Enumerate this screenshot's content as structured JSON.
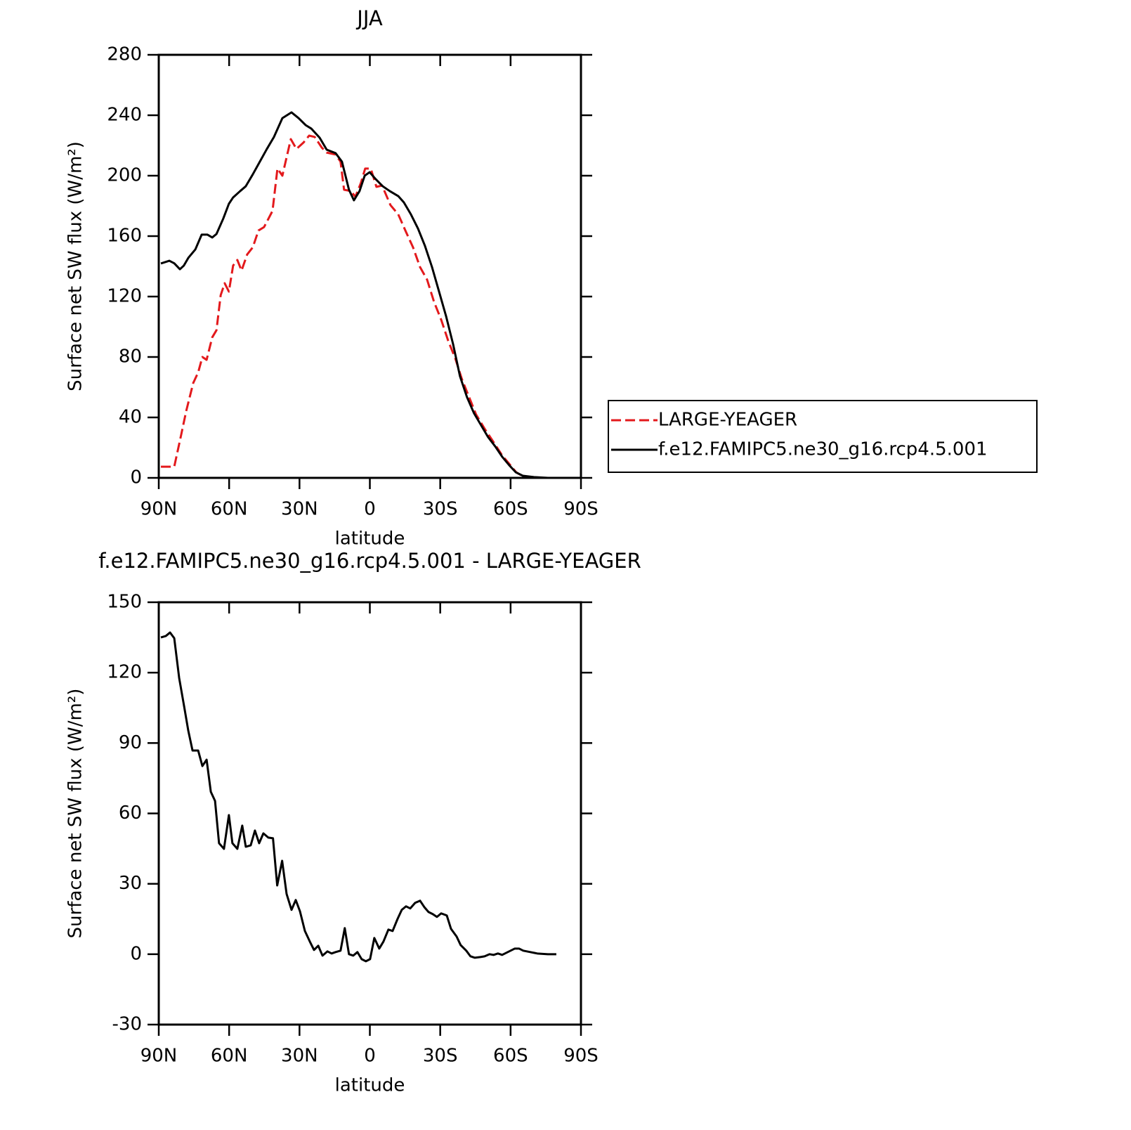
{
  "chart_data": [
    {
      "type": "line",
      "title": "JJA",
      "xlabel": "latitude",
      "ylabel": "Surface net SW flux (W/m²)",
      "xlim": [
        90,
        -90
      ],
      "xticks": [
        {
          "value": 90,
          "label": "90N"
        },
        {
          "value": 60,
          "label": "60N"
        },
        {
          "value": 30,
          "label": "30N"
        },
        0,
        {
          "value": -30,
          "label": "30S"
        },
        {
          "value": -60,
          "label": "60S"
        },
        {
          "value": -90,
          "label": "90S"
        }
      ],
      "ylim": [
        0,
        280
      ],
      "yticks": [
        0,
        40,
        80,
        120,
        160,
        200,
        240,
        280
      ],
      "legend": "right",
      "series": [
        {
          "name": "LARGE-YEAGER",
          "color": "#e3191c",
          "linestyle": "dashed",
          "x": [
            89.1,
            83.4,
            80.4,
            78.3,
            75.3,
            73.2,
            71.4,
            69.6,
            67.2,
            65.4,
            63.6,
            61.9,
            60.1,
            58.3,
            56.5,
            54.7,
            52.3,
            49.9,
            47.5,
            45.1,
            41.5,
            39.4,
            37.3,
            33.7,
            31.3,
            28.3,
            25.9,
            23.5,
            20.5,
            18.4,
            14.6,
            12.5,
            11,
            8,
            6.2,
            3.8,
            2,
            -0.4,
            -2.8,
            -5.2,
            -8.8,
            -12.1,
            -15.4,
            -18.4,
            -21.4,
            -24.4,
            -27.4,
            -30.4,
            -33.4,
            -36.4,
            -39.3,
            -42.3,
            -45.3,
            -48.9,
            -52.5,
            -56.4,
            -59.4,
            -62.4,
            -65.4,
            -69.9,
            -81.9,
            -88.5
          ],
          "values": [
            7.4,
            7.4,
            28.8,
            44.2,
            62.8,
            69.8,
            80,
            78.1,
            93,
            97.7,
            120.9,
            128.8,
            123.3,
            140.5,
            144.2,
            137.2,
            147.9,
            152.6,
            163.7,
            166,
            176.7,
            204.7,
            200,
            224.2,
            217.7,
            221.9,
            226.5,
            225.6,
            218.6,
            215.3,
            214,
            209.3,
            190.7,
            189.8,
            186,
            195.3,
            204.7,
            204.7,
            192.6,
            193.5,
            180.5,
            174.4,
            162.8,
            152.6,
            139.5,
            131.2,
            116.3,
            104.7,
            90.7,
            79.1,
            65.1,
            53.5,
            41.9,
            32.6,
            24.2,
            14.9,
            9.3,
            3.7,
            0.9,
            0,
            0,
            0
          ]
        },
        {
          "name": "f.e12.FAMIPC5.ne30_g16.rcp4.5.001",
          "color": "#000000",
          "linestyle": "solid",
          "x": [
            89.1,
            85.5,
            83.4,
            81,
            79.3,
            77.4,
            74.4,
            71.7,
            69.3,
            67.2,
            65.4,
            62.5,
            60.1,
            58.3,
            55.3,
            52.9,
            49.9,
            46.9,
            43.9,
            40.9,
            37.3,
            33.4,
            30.4,
            27.4,
            25,
            21.4,
            18.4,
            14.6,
            11.9,
            8.9,
            6.8,
            4.4,
            2.2,
            0.1,
            -2.5,
            -5.5,
            -8.5,
            -12.1,
            -14.5,
            -17.5,
            -20.5,
            -23.5,
            -26.5,
            -29.5,
            -32.5,
            -35.5,
            -38.4,
            -41.4,
            -44.4,
            -47.4,
            -50.4,
            -53.4,
            -56.4,
            -59.4,
            -62.2,
            -65.2,
            -69.9,
            -75.9,
            -81.9,
            -88.5
          ],
          "values": [
            141.9,
            143.7,
            142,
            138.1,
            140.5,
            145.6,
            151.2,
            161,
            161,
            159.1,
            161.4,
            171.6,
            181.4,
            185.6,
            189.8,
            193,
            200.9,
            209.3,
            217.7,
            225.6,
            238.1,
            241.9,
            238.1,
            233.5,
            231.2,
            225.1,
            217.2,
            214.9,
            209.3,
            190.7,
            183.7,
            189.8,
            200,
            202.3,
            197.7,
            193,
            189.8,
            186.5,
            182.3,
            174.4,
            165.1,
            153.5,
            139.5,
            123.3,
            107,
            88.4,
            67.4,
            53.5,
            42.8,
            34.9,
            27,
            20.9,
            14,
            8.4,
            3.7,
            1.4,
            0.5,
            0,
            0,
            0
          ]
        }
      ]
    },
    {
      "type": "line",
      "title": "f.e12.FAMIPC5.ne30_g16.rcp4.5.001 - LARGE-YEAGER",
      "xlabel": "latitude",
      "ylabel": "Surface net SW flux (W/m²)",
      "xlim": [
        90,
        -90
      ],
      "xticks": [
        {
          "value": 90,
          "label": "90N"
        },
        {
          "value": 60,
          "label": "60N"
        },
        {
          "value": 30,
          "label": "30N"
        },
        0,
        {
          "value": -30,
          "label": "30S"
        },
        {
          "value": -60,
          "label": "60S"
        },
        {
          "value": -90,
          "label": "90S"
        }
      ],
      "ylim": [
        -30,
        150
      ],
      "yticks": [
        -30,
        0,
        30,
        60,
        90,
        120,
        150
      ],
      "color": "#000000",
      "x": [
        89.1,
        87,
        85.2,
        83.4,
        81.3,
        79.2,
        77.4,
        75.6,
        73.2,
        71.4,
        69.6,
        67.8,
        66,
        64.3,
        62.2,
        60.1,
        58.6,
        56.5,
        54.4,
        52.9,
        50.8,
        49,
        47.2,
        45.4,
        43.3,
        41.3,
        39.5,
        37.4,
        35.5,
        33.4,
        31.6,
        29.8,
        27.7,
        25.6,
        23.8,
        22,
        20.2,
        18.1,
        16.3,
        14.6,
        12.5,
        10.7,
        8.9,
        7.1,
        5.3,
        3.5,
        1.7,
        -0.1,
        -1.9,
        -4,
        -5.8,
        -7.9,
        -9.7,
        -11.8,
        -13.6,
        -15.4,
        -17.2,
        -19.3,
        -21.4,
        -23.2,
        -25,
        -26.8,
        -28.6,
        -30.4,
        -32.8,
        -34.6,
        -37,
        -38.7,
        -41.1,
        -42.9,
        -44.7,
        -47.1,
        -48.9,
        -51,
        -52.8,
        -54.6,
        -56.4,
        -58.2,
        -60,
        -61.8,
        -63.6,
        -65.4,
        -68.4,
        -71.4,
        -75.9,
        -79.5
      ],
      "values": [
        135,
        135.6,
        137.1,
        134.7,
        117.7,
        105.7,
        95.2,
        86.8,
        86.8,
        80.2,
        82.9,
        69.2,
        65.3,
        47.3,
        44.9,
        59.3,
        47.3,
        44.9,
        54.8,
        45.8,
        46.4,
        52.7,
        47.3,
        51.5,
        49.7,
        49.4,
        29.3,
        39.8,
        25.7,
        18.9,
        23.1,
        18.3,
        9.9,
        5.4,
        1.8,
        3.6,
        -0.6,
        1.2,
        0.3,
        0.9,
        1.5,
        11.1,
        0,
        -0.6,
        0.9,
        -2.1,
        -3,
        -2.1,
        6.9,
        2.4,
        5.4,
        10.5,
        9.9,
        15,
        18.9,
        20.4,
        19.5,
        21.9,
        22.8,
        20.1,
        18,
        17.1,
        15.9,
        17.4,
        16.5,
        10.8,
        7.5,
        3.9,
        1.5,
        -0.9,
        -1.5,
        -1.2,
        -0.9,
        0,
        -0.3,
        0.3,
        -0.3,
        0.6,
        1.5,
        2.4,
        2.4,
        1.5,
        0.9,
        0.3,
        0,
        0
      ]
    }
  ]
}
